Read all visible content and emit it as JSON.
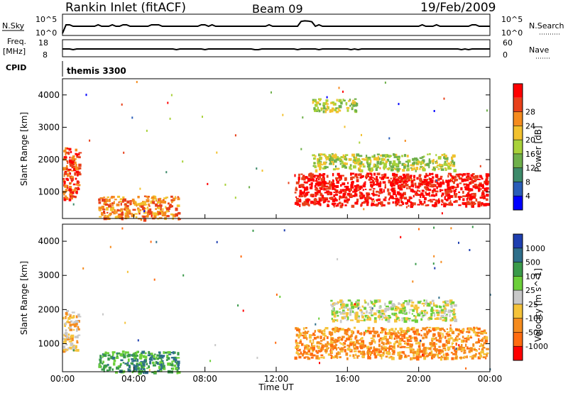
{
  "header": {
    "title": "Rankin Inlet (fitACF)",
    "beam": "Beam 09",
    "date": "19/Feb/2009"
  },
  "top_panels": {
    "nsky_label": "N.Sky",
    "nsearch_label": "N.Search",
    "nsky_tick_high": "10^5",
    "nsky_tick_low": "10^0",
    "freq_label": "Freq.",
    "freq_unit": "[MHz]",
    "freq_tick_high": "18",
    "freq_tick_low": "8",
    "nave_label": "Nave",
    "nave_tick_high": "60",
    "nave_tick_low": "0",
    "cpid_label": "CPID",
    "cpid_value": "themis 3300"
  },
  "chart_data": [
    {
      "type": "heatmap",
      "ylabel": "Slant Range [km]",
      "yticks": [
        "1000",
        "2000",
        "3000",
        "4000"
      ],
      "colorbar_label": "Power [dB]",
      "colorbar_ticks": [
        "4",
        "8",
        "12",
        "16",
        "20",
        "24",
        "28"
      ],
      "colors": [
        "#0000ff",
        "#2a5db8",
        "#3d8a6a",
        "#6fb04b",
        "#a9d23a",
        "#f2c12e",
        "#f58b1e",
        "#e8401a",
        "#ff0000"
      ],
      "regions": [
        {
          "t0": 0.0,
          "t1": 0.9,
          "r0": 800,
          "r1": 2400,
          "level": 7
        },
        {
          "t0": 2.0,
          "t1": 6.5,
          "r0": 180,
          "r1": 900,
          "level": 6
        },
        {
          "t0": 13.0,
          "t1": 23.8,
          "r0": 600,
          "r1": 1600,
          "level": 8
        },
        {
          "t0": 14.0,
          "t1": 22.0,
          "r0": 1700,
          "r1": 2200,
          "level": 4
        },
        {
          "t0": 14.0,
          "t1": 16.5,
          "r0": 3500,
          "r1": 3900,
          "level": 4
        }
      ]
    },
    {
      "type": "heatmap",
      "xlabel": "Time UT",
      "ylabel": "Slant Range [km]",
      "xticks": [
        "00:00",
        "04:00",
        "08:00",
        "12:00",
        "16:00",
        "20:00",
        "00:00"
      ],
      "yticks": [
        "1000",
        "2000",
        "3000",
        "4000"
      ],
      "colorbar_label": "Velocity [m s^-1]",
      "colorbar_ticks": [
        "1000",
        "500",
        "100",
        "25",
        "-25",
        "-100",
        "-500",
        "-1000"
      ],
      "colors": [
        "#1e3fb0",
        "#2e6e8a",
        "#3a9a4a",
        "#6ccf3a",
        "#c8c8c8",
        "#f5c33a",
        "#f58b1e",
        "#ff6b10",
        "#ff0000"
      ],
      "regions": [
        {
          "t0": 0.0,
          "t1": 0.9,
          "r0": 800,
          "r1": 2000,
          "level": 5
        },
        {
          "t0": 2.0,
          "t1": 6.5,
          "r0": 180,
          "r1": 800,
          "level": 2
        },
        {
          "t0": 13.0,
          "t1": 23.8,
          "r0": 600,
          "r1": 1500,
          "level": 6
        },
        {
          "t0": 15.0,
          "t1": 22.0,
          "r0": 1700,
          "r1": 2300,
          "level": 4
        }
      ]
    }
  ]
}
